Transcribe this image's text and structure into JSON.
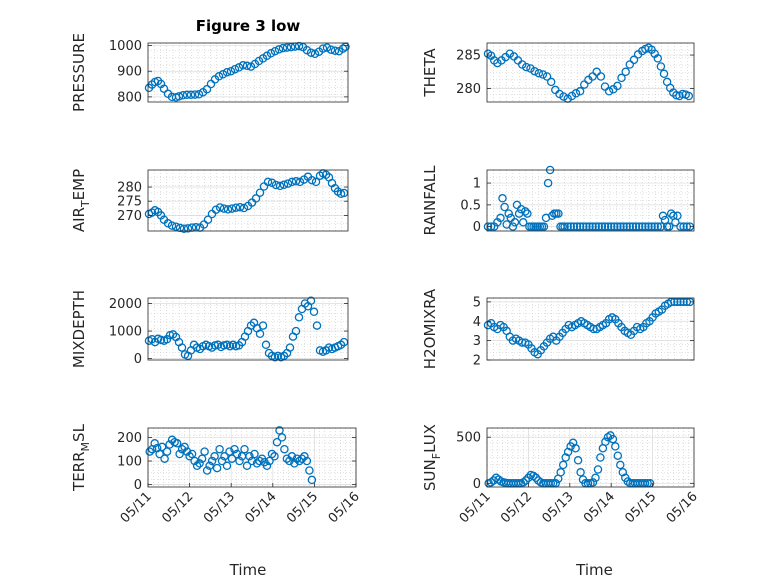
{
  "figure": {
    "background": "#ffffff",
    "marker_color": "#0072bd"
  },
  "chart_data": [
    {
      "type": "scatter",
      "title": "Figure 3 low",
      "ylabel": "PRESSURE",
      "yticks": [
        "800",
        "900",
        "1000"
      ],
      "yticks_v": [
        800,
        900,
        1000
      ],
      "ylim": [
        780,
        1010
      ],
      "xlim": [
        0,
        4
      ],
      "xticks": [],
      "x": [
        0.02,
        0.08,
        0.14,
        0.2,
        0.26,
        0.32,
        0.4,
        0.48,
        0.56,
        0.62,
        0.7,
        0.78,
        0.86,
        0.94,
        1.02,
        1.1,
        1.18,
        1.26,
        1.34,
        1.42,
        1.5,
        1.58,
        1.66,
        1.74,
        1.82,
        1.9,
        1.98,
        2.06,
        2.14,
        2.22,
        2.3,
        2.38,
        2.46,
        2.54,
        2.62,
        2.7,
        2.78,
        2.86,
        2.94,
        3.02,
        3.1,
        3.18,
        3.26,
        3.34,
        3.42,
        3.5,
        3.58,
        3.66,
        3.74,
        3.82,
        3.9,
        3.95
      ],
      "y": [
        835,
        848,
        858,
        862,
        850,
        832,
        812,
        800,
        798,
        802,
        806,
        808,
        808,
        809,
        810,
        818,
        830,
        850,
        868,
        880,
        888,
        896,
        900,
        908,
        915,
        923,
        921,
        918,
        928,
        940,
        950,
        960,
        970,
        978,
        985,
        990,
        992,
        994,
        996,
        998,
        994,
        982,
        972,
        968,
        976,
        988,
        992,
        984,
        980,
        978,
        988,
        995
      ]
    },
    {
      "type": "scatter",
      "title": "",
      "ylabel": "THETA",
      "yticks": [
        "280",
        "285"
      ],
      "yticks_v": [
        280,
        285
      ],
      "ylim": [
        278,
        286.8
      ],
      "xlim": [
        0,
        4
      ],
      "xticks": [],
      "x": [
        0.02,
        0.08,
        0.14,
        0.2,
        0.28,
        0.36,
        0.44,
        0.52,
        0.6,
        0.68,
        0.76,
        0.84,
        0.92,
        1.0,
        1.08,
        1.16,
        1.24,
        1.32,
        1.4,
        1.48,
        1.56,
        1.64,
        1.72,
        1.8,
        1.88,
        1.96,
        2.04,
        2.12,
        2.2,
        2.28,
        2.36,
        2.44,
        2.52,
        2.6,
        2.68,
        2.76,
        2.84,
        2.92,
        3.0,
        3.06,
        3.12,
        3.18,
        3.24,
        3.3,
        3.36,
        3.42,
        3.48,
        3.54,
        3.6,
        3.66,
        3.72,
        3.78,
        3.84,
        3.9
      ],
      "y": [
        285.2,
        284.9,
        284.2,
        283.8,
        284.2,
        284.7,
        285.2,
        284.8,
        284.2,
        283.6,
        283.2,
        283.0,
        282.6,
        282.3,
        282.1,
        281.8,
        281.0,
        279.8,
        279.2,
        278.8,
        278.5,
        278.9,
        279.3,
        279.6,
        280.6,
        281.3,
        281.8,
        282.5,
        281.8,
        280.3,
        279.6,
        279.9,
        280.4,
        281.6,
        282.5,
        283.6,
        284.3,
        285.1,
        285.6,
        285.9,
        286.1,
        285.8,
        285.2,
        284.5,
        283.3,
        282.2,
        281.0,
        280.1,
        279.4,
        279.0,
        278.9,
        279.2,
        279.1,
        278.9
      ]
    },
    {
      "type": "scatter",
      "title": "",
      "ylabel": "AIR_TEMP",
      "ylabel_parts": {
        "main": "AIR",
        "sub": "T",
        "rest": "EMP"
      },
      "yticks": [
        "270",
        "275",
        "280"
      ],
      "yticks_v": [
        270,
        275,
        280
      ],
      "ylim": [
        264.5,
        286
      ],
      "xlim": [
        0,
        4
      ],
      "xticks": [],
      "x": [
        0.02,
        0.08,
        0.14,
        0.2,
        0.26,
        0.32,
        0.4,
        0.48,
        0.56,
        0.64,
        0.72,
        0.8,
        0.88,
        0.96,
        1.04,
        1.12,
        1.2,
        1.28,
        1.36,
        1.44,
        1.52,
        1.6,
        1.68,
        1.76,
        1.84,
        1.92,
        2.0,
        2.08,
        2.16,
        2.24,
        2.32,
        2.4,
        2.48,
        2.56,
        2.64,
        2.72,
        2.8,
        2.88,
        2.96,
        3.04,
        3.12,
        3.2,
        3.28,
        3.36,
        3.44,
        3.5,
        3.56,
        3.62,
        3.68,
        3.74,
        3.8,
        3.86,
        3.92
      ],
      "y": [
        270.5,
        271.0,
        271.8,
        271.2,
        270.0,
        268.5,
        267.2,
        266.4,
        266.0,
        265.6,
        265.3,
        265.4,
        265.7,
        265.8,
        265.7,
        266.8,
        268.5,
        270.5,
        272.0,
        272.8,
        272.4,
        272.1,
        272.4,
        272.7,
        272.9,
        272.6,
        273.3,
        274.5,
        276.0,
        278.0,
        280.2,
        281.8,
        281.5,
        280.7,
        280.4,
        280.8,
        281.2,
        281.8,
        282.0,
        281.8,
        282.6,
        283.6,
        282.4,
        281.8,
        284.0,
        284.8,
        284.3,
        283.4,
        281.4,
        279.6,
        278.4,
        277.6,
        277.9
      ]
    },
    {
      "type": "scatter",
      "title": "",
      "ylabel": "RAINFALL",
      "yticks": [
        "0",
        "0.5",
        "1"
      ],
      "yticks_v": [
        0,
        0.5,
        1
      ],
      "ylim": [
        -0.1,
        1.3
      ],
      "xlim": [
        0,
        4
      ],
      "xticks": [],
      "x": [
        0.02,
        0.08,
        0.14,
        0.2,
        0.26,
        0.3,
        0.34,
        0.38,
        0.42,
        0.46,
        0.5,
        0.54,
        0.58,
        0.62,
        0.66,
        0.7,
        0.74,
        0.78,
        0.82,
        0.86,
        0.9,
        0.94,
        0.98,
        1.02,
        1.06,
        1.1,
        1.14,
        1.18,
        1.22,
        1.26,
        1.3,
        1.34,
        1.38,
        1.42,
        1.46,
        1.5,
        1.56,
        1.62,
        1.68,
        1.74,
        1.8,
        1.86,
        1.92,
        1.98,
        2.04,
        2.1,
        2.16,
        2.22,
        2.28,
        2.34,
        2.4,
        2.46,
        2.52,
        2.58,
        2.64,
        2.7,
        2.76,
        2.82,
        2.88,
        2.94,
        3.0,
        3.06,
        3.12,
        3.18,
        3.24,
        3.3,
        3.36,
        3.4,
        3.44,
        3.48,
        3.52,
        3.56,
        3.6,
        3.64,
        3.68,
        3.74,
        3.8,
        3.86,
        3.92
      ],
      "y": [
        0,
        0,
        0,
        0.1,
        0.2,
        0.65,
        0.45,
        0.05,
        0.3,
        0.2,
        0,
        0.1,
        0.5,
        0.3,
        0.4,
        0.1,
        0.35,
        0.3,
        0,
        0,
        0,
        0,
        0,
        0,
        0,
        0,
        0.2,
        1.0,
        1.3,
        0.25,
        0.3,
        0.3,
        0.3,
        0,
        0,
        0,
        0,
        0,
        0,
        0,
        0,
        0,
        0,
        0,
        0,
        0,
        0,
        0,
        0,
        0,
        0,
        0,
        0,
        0,
        0,
        0,
        0,
        0,
        0,
        0,
        0,
        0,
        0,
        0,
        0,
        0,
        0,
        0.25,
        0.15,
        0,
        0,
        0.3,
        0.25,
        0.1,
        0.25,
        0,
        0,
        0,
        0
      ]
    },
    {
      "type": "scatter",
      "title": "",
      "ylabel": "MIXDEPTH",
      "yticks": [
        "0",
        "1000",
        "2000"
      ],
      "yticks_v": [
        0,
        1000,
        2000
      ],
      "ylim": [
        -50,
        2200
      ],
      "xlim": [
        0,
        4
      ],
      "xticks": [],
      "x": [
        0.02,
        0.08,
        0.14,
        0.2,
        0.26,
        0.32,
        0.38,
        0.44,
        0.5,
        0.56,
        0.62,
        0.68,
        0.74,
        0.8,
        0.86,
        0.92,
        0.98,
        1.04,
        1.1,
        1.16,
        1.22,
        1.28,
        1.34,
        1.4,
        1.46,
        1.52,
        1.58,
        1.64,
        1.7,
        1.76,
        1.82,
        1.88,
        1.94,
        2.0,
        2.06,
        2.12,
        2.18,
        2.24,
        2.3,
        2.36,
        2.42,
        2.48,
        2.54,
        2.6,
        2.66,
        2.72,
        2.78,
        2.84,
        2.9,
        2.96,
        3.02,
        3.08,
        3.14,
        3.2,
        3.26,
        3.32,
        3.38,
        3.44,
        3.5,
        3.56,
        3.62,
        3.68,
        3.74,
        3.8,
        3.86,
        3.92
      ],
      "y": [
        650,
        700,
        600,
        720,
        680,
        650,
        700,
        850,
        880,
        780,
        600,
        400,
        150,
        100,
        300,
        500,
        400,
        350,
        450,
        500,
        450,
        400,
        480,
        500,
        420,
        480,
        500,
        450,
        500,
        450,
        480,
        600,
        800,
        1000,
        1200,
        1300,
        1100,
        900,
        1200,
        500,
        200,
        100,
        50,
        100,
        50,
        100,
        200,
        400,
        800,
        1000,
        1500,
        1800,
        2000,
        1900,
        2100,
        1700,
        1200,
        300,
        250,
        300,
        400,
        350,
        400,
        450,
        500,
        600
      ]
    },
    {
      "type": "scatter",
      "title": "",
      "ylabel": "H2OMIXRA",
      "yticks": [
        "2",
        "3",
        "4",
        "5"
      ],
      "yticks_v": [
        2,
        3,
        4,
        5
      ],
      "ylim": [
        2,
        5.2
      ],
      "xlim": [
        0,
        4
      ],
      "xticks": [],
      "x": [
        0.02,
        0.08,
        0.14,
        0.2,
        0.26,
        0.32,
        0.38,
        0.44,
        0.5,
        0.56,
        0.62,
        0.68,
        0.74,
        0.8,
        0.86,
        0.92,
        0.98,
        1.04,
        1.1,
        1.16,
        1.22,
        1.28,
        1.34,
        1.4,
        1.46,
        1.52,
        1.58,
        1.64,
        1.7,
        1.76,
        1.82,
        1.88,
        1.94,
        2.0,
        2.06,
        2.12,
        2.18,
        2.24,
        2.3,
        2.36,
        2.42,
        2.48,
        2.54,
        2.6,
        2.66,
        2.72,
        2.78,
        2.84,
        2.9,
        2.96,
        3.02,
        3.08,
        3.14,
        3.2,
        3.26,
        3.32,
        3.38,
        3.44,
        3.5,
        3.56,
        3.62,
        3.68,
        3.74,
        3.8,
        3.86,
        3.92
      ],
      "y": [
        3.8,
        3.9,
        3.7,
        3.6,
        3.8,
        3.7,
        3.5,
        3.2,
        3.0,
        3.1,
        3.0,
        2.9,
        2.9,
        2.8,
        2.6,
        2.4,
        2.3,
        2.5,
        2.7,
        2.9,
        3.1,
        3.2,
        3.0,
        3.2,
        3.4,
        3.6,
        3.8,
        3.7,
        3.8,
        3.9,
        4.0,
        3.9,
        3.8,
        3.7,
        3.6,
        3.6,
        3.7,
        3.8,
        3.9,
        4.1,
        4.2,
        4.1,
        3.9,
        3.7,
        3.5,
        3.4,
        3.3,
        3.5,
        3.7,
        3.6,
        3.7,
        3.9,
        4.0,
        4.2,
        4.4,
        4.5,
        4.6,
        4.8,
        4.9,
        5.0,
        5.0,
        5.0,
        5.0,
        5.0,
        5.0,
        5.0
      ]
    },
    {
      "type": "scatter",
      "title": "",
      "ylabel": "TERR_MSL",
      "ylabel_parts": {
        "main": "TERR",
        "sub": "M",
        "rest": "SL"
      },
      "yticks": [
        "0",
        "100",
        "200"
      ],
      "yticks_v": [
        0,
        100,
        200
      ],
      "ylim": [
        -10,
        240
      ],
      "xlim": [
        0,
        5
      ],
      "xticks": [
        "05/11",
        "05/12",
        "05/13",
        "05/14",
        "05/15",
        "05/16"
      ],
      "xticks_v": [
        0,
        1,
        2,
        3,
        4,
        5
      ],
      "xlabel": "Time",
      "x": [
        0.04,
        0.1,
        0.16,
        0.22,
        0.28,
        0.34,
        0.4,
        0.46,
        0.52,
        0.58,
        0.64,
        0.7,
        0.76,
        0.82,
        0.88,
        0.94,
        1.0,
        1.06,
        1.12,
        1.18,
        1.24,
        1.3,
        1.36,
        1.42,
        1.48,
        1.54,
        1.6,
        1.66,
        1.72,
        1.78,
        1.84,
        1.9,
        1.96,
        2.02,
        2.08,
        2.14,
        2.2,
        2.26,
        2.32,
        2.38,
        2.44,
        2.5,
        2.56,
        2.62,
        2.68,
        2.74,
        2.8,
        2.86,
        2.92,
        2.98,
        3.04,
        3.1,
        3.16,
        3.22,
        3.28,
        3.34,
        3.4,
        3.46,
        3.52,
        3.58,
        3.64,
        3.7,
        3.76,
        3.82,
        3.88,
        3.94
      ],
      "y": [
        140,
        150,
        175,
        155,
        130,
        160,
        110,
        140,
        170,
        190,
        180,
        175,
        130,
        150,
        160,
        140,
        120,
        130,
        100,
        80,
        90,
        110,
        140,
        60,
        80,
        100,
        120,
        70,
        150,
        100,
        120,
        80,
        140,
        110,
        150,
        130,
        100,
        120,
        150,
        80,
        120,
        100,
        130,
        90,
        100,
        110,
        95,
        80,
        100,
        130,
        120,
        180,
        230,
        200,
        150,
        110,
        100,
        120,
        90,
        110,
        100,
        110,
        120,
        100,
        60,
        20
      ]
    },
    {
      "type": "scatter",
      "title": "",
      "ylabel": "SUN_FLUX",
      "ylabel_parts": {
        "main": "SUN",
        "sub": "F",
        "rest": "LUX"
      },
      "yticks": [
        "0",
        "500"
      ],
      "yticks_v": [
        0,
        500
      ],
      "ylim": [
        -40,
        600
      ],
      "xlim": [
        0,
        5
      ],
      "xticks": [
        "05/11",
        "05/12",
        "05/13",
        "05/14",
        "05/15",
        "05/16"
      ],
      "xticks_v": [
        0,
        1,
        2,
        3,
        4,
        5
      ],
      "xlabel": "Time",
      "x": [
        0.04,
        0.1,
        0.16,
        0.22,
        0.28,
        0.34,
        0.4,
        0.46,
        0.52,
        0.58,
        0.64,
        0.7,
        0.76,
        0.82,
        0.88,
        0.94,
        1.0,
        1.06,
        1.12,
        1.18,
        1.24,
        1.3,
        1.36,
        1.42,
        1.48,
        1.54,
        1.6,
        1.66,
        1.72,
        1.78,
        1.84,
        1.9,
        1.96,
        2.02,
        2.08,
        2.14,
        2.2,
        2.26,
        2.32,
        2.38,
        2.44,
        2.5,
        2.56,
        2.62,
        2.68,
        2.74,
        2.8,
        2.86,
        2.92,
        2.98,
        3.04,
        3.1,
        3.16,
        3.22,
        3.28,
        3.34,
        3.4,
        3.46,
        3.52,
        3.58,
        3.64,
        3.7,
        3.76,
        3.82,
        3.88,
        3.94
      ],
      "y": [
        0,
        10,
        30,
        60,
        40,
        20,
        10,
        5,
        0,
        0,
        0,
        0,
        0,
        0,
        10,
        30,
        60,
        90,
        80,
        60,
        30,
        10,
        0,
        0,
        0,
        0,
        0,
        0,
        50,
        120,
        200,
        280,
        340,
        400,
        440,
        380,
        250,
        120,
        40,
        0,
        0,
        0,
        10,
        60,
        150,
        280,
        380,
        450,
        500,
        520,
        480,
        400,
        300,
        200,
        120,
        60,
        20,
        0,
        0,
        0,
        0,
        0,
        0,
        0,
        0,
        0
      ]
    }
  ]
}
